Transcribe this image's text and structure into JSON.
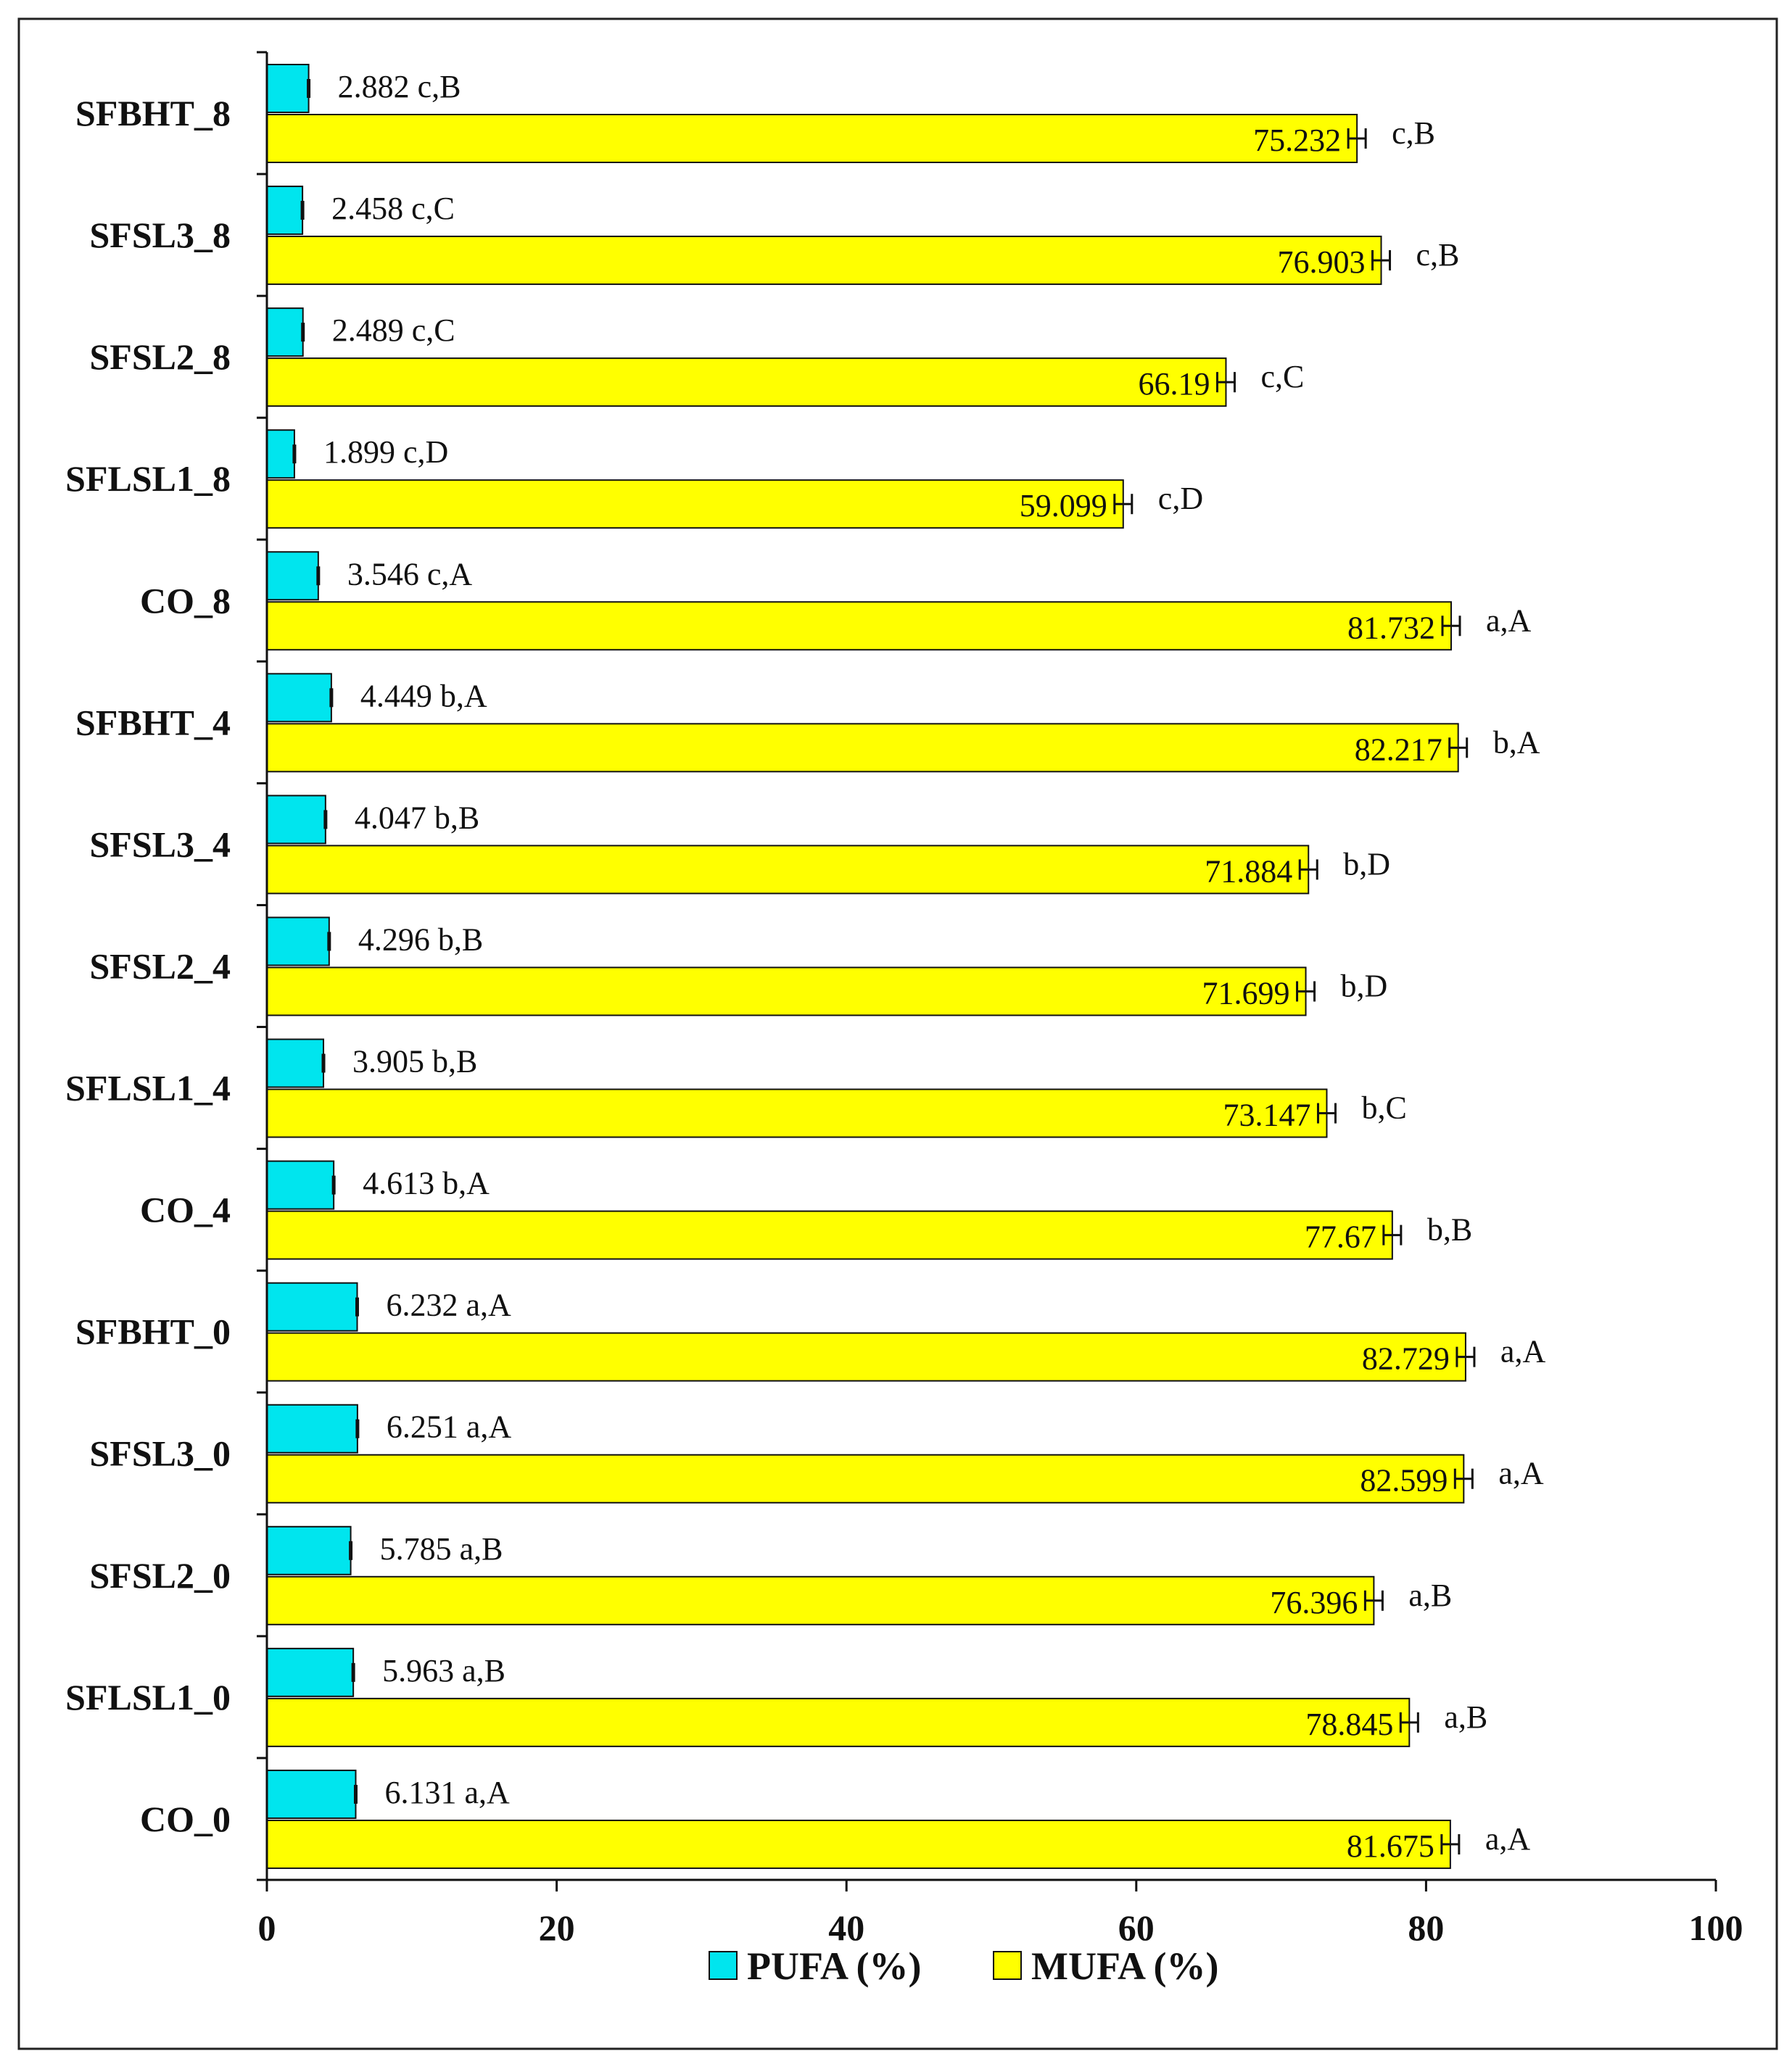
{
  "chart_data": {
    "type": "bar",
    "orientation": "horizontal",
    "categories": [
      "SFBHT_8",
      "SFSL3_8",
      "SFSL2_8",
      "SFLSL1_8",
      "CO_8",
      "SFBHT_4",
      "SFSL3_4",
      "SFSL2_4",
      "SFLSL1_4",
      "CO_4",
      "SFBHT_0",
      "SFSL3_0",
      "SFSL2_0",
      "SFLSL1_0",
      "CO_0"
    ],
    "series": [
      {
        "name": "PUFA (%)",
        "color": "#00E5EE",
        "values": [
          2.882,
          2.458,
          2.489,
          1.899,
          3.546,
          4.449,
          4.047,
          4.296,
          3.905,
          4.613,
          6.232,
          6.251,
          5.785,
          5.963,
          6.131
        ],
        "labels": [
          "2.882",
          "2.458",
          "2.489",
          "1.899",
          "3.546",
          "4.449",
          "4.047",
          "4.296",
          "3.905",
          "4.613",
          "6.232",
          "6.251",
          "5.785",
          "5.963",
          "6.131"
        ],
        "letters": [
          "c,B",
          "c,C",
          "c,C",
          "c,D",
          "c,A",
          "b,A",
          "b,B",
          "b,B",
          "b,B",
          "b,A",
          "a,A",
          "a,A",
          "a,B",
          "a,B",
          "a,A"
        ]
      },
      {
        "name": "MUFA (%)",
        "color": "#FFFF00",
        "values": [
          75.232,
          76.903,
          66.19,
          59.099,
          81.732,
          82.217,
          71.884,
          71.699,
          73.147,
          77.67,
          82.729,
          82.599,
          76.396,
          78.845,
          81.675
        ],
        "labels": [
          "75.232",
          "76.903",
          "66.19",
          "59.099",
          "81.732",
          "82.217",
          "71.884",
          "71.699",
          "73.147",
          "77.67",
          "82.729",
          "82.599",
          "76.396",
          "78.845",
          "81.675"
        ],
        "letters": [
          "c,B",
          "c,B",
          "c,C",
          "c,D",
          "a,A",
          "b,A",
          "b,D",
          "b,D",
          "b,C",
          "b,B",
          "a,A",
          "a,A",
          "a,B",
          "a,B",
          "a,A"
        ]
      }
    ],
    "xlim": [
      0,
      100
    ],
    "xticks": [
      "0",
      "20",
      "40",
      "60",
      "80",
      "100"
    ],
    "legend_position": "bottom-center",
    "grid": false,
    "title": "",
    "xlabel": "",
    "ylabel": ""
  }
}
